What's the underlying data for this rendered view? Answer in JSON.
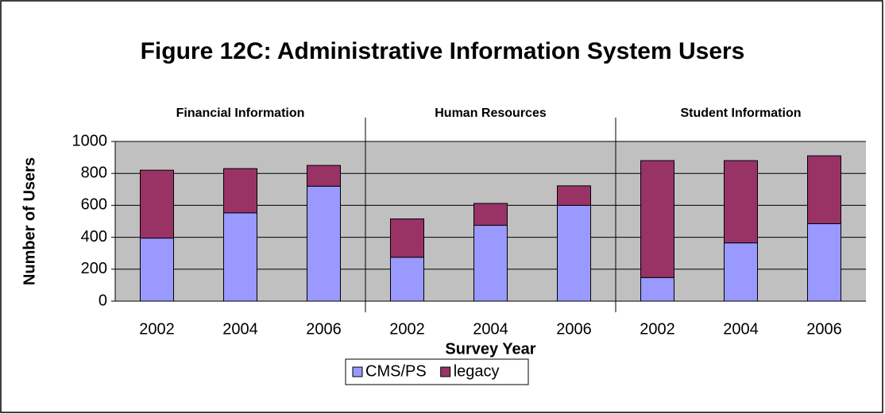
{
  "chart_data": {
    "type": "stacked_bar",
    "title": "Figure 12C: Administrative Information System Users",
    "y_label": "Number of Users",
    "x_label": "Survey Year",
    "groups": [
      "Financial Information",
      "Human Resources",
      "Student Information"
    ],
    "categories": [
      "2002",
      "2004",
      "2006",
      "2002",
      "2004",
      "2006",
      "2002",
      "2004",
      "2006"
    ],
    "series": [
      {
        "name": "CMS/PS",
        "color": "#9999ff",
        "values": [
          395,
          553,
          720,
          275,
          475,
          600,
          148,
          365,
          485
        ]
      },
      {
        "name": "legacy",
        "color": "#993366",
        "values": [
          425,
          277,
          130,
          240,
          137,
          122,
          732,
          515,
          425
        ]
      }
    ],
    "ylim": [
      0,
      1000
    ],
    "yticks": [
      0,
      200,
      400,
      600,
      800,
      1000
    ],
    "grid": true,
    "legend": "bottom"
  }
}
